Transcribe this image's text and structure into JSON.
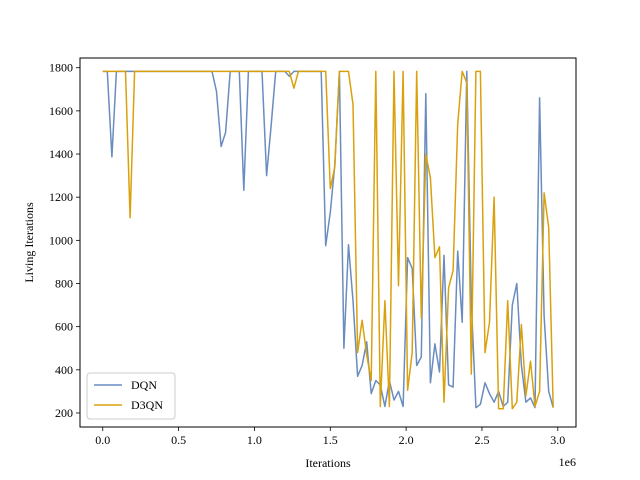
{
  "chart_data": {
    "type": "line",
    "title": "",
    "xlabel": "Iterations",
    "ylabel": "Living Iterations",
    "x_scale_label": "1e6",
    "xlim": [
      -0.15,
      3.12
    ],
    "ylim": [
      135,
      1845
    ],
    "xticks": [
      0.0,
      0.5,
      1.0,
      1.5,
      2.0,
      2.5,
      3.0
    ],
    "xtick_labels": [
      "0.0",
      "0.5",
      "1.0",
      "1.5",
      "2.0",
      "2.5",
      "3.0"
    ],
    "yticks": [
      200,
      400,
      600,
      800,
      1000,
      1200,
      1400,
      1600,
      1800
    ],
    "ytick_labels": [
      "200",
      "400",
      "600",
      "800",
      "1000",
      "1200",
      "1400",
      "1600",
      "1800"
    ],
    "grid": false,
    "legend_position": "lower-left",
    "series": [
      {
        "name": "DQN",
        "color": "#6a8cbf",
        "points": [
          [
            0.0,
            1783
          ],
          [
            0.03,
            1783
          ],
          [
            0.06,
            1387
          ],
          [
            0.09,
            1783
          ],
          [
            0.12,
            1783
          ],
          [
            0.15,
            1783
          ],
          [
            0.3,
            1783
          ],
          [
            0.5,
            1783
          ],
          [
            0.7,
            1783
          ],
          [
            0.72,
            1783
          ],
          [
            0.75,
            1690
          ],
          [
            0.78,
            1435
          ],
          [
            0.81,
            1500
          ],
          [
            0.84,
            1783
          ],
          [
            0.87,
            1783
          ],
          [
            0.9,
            1783
          ],
          [
            0.93,
            1232
          ],
          [
            0.96,
            1783
          ],
          [
            0.99,
            1783
          ],
          [
            1.02,
            1783
          ],
          [
            1.05,
            1783
          ],
          [
            1.08,
            1300
          ],
          [
            1.11,
            1530
          ],
          [
            1.14,
            1783
          ],
          [
            1.17,
            1783
          ],
          [
            1.2,
            1783
          ],
          [
            1.23,
            1760
          ],
          [
            1.26,
            1783
          ],
          [
            1.29,
            1783
          ],
          [
            1.32,
            1783
          ],
          [
            1.35,
            1783
          ],
          [
            1.38,
            1783
          ],
          [
            1.41,
            1783
          ],
          [
            1.44,
            1783
          ],
          [
            1.47,
            975
          ],
          [
            1.5,
            1130
          ],
          [
            1.53,
            1350
          ],
          [
            1.56,
            1783
          ],
          [
            1.59,
            500
          ],
          [
            1.62,
            980
          ],
          [
            1.65,
            720
          ],
          [
            1.68,
            370
          ],
          [
            1.71,
            420
          ],
          [
            1.74,
            530
          ],
          [
            1.77,
            290
          ],
          [
            1.8,
            350
          ],
          [
            1.83,
            330
          ],
          [
            1.86,
            230
          ],
          [
            1.89,
            350
          ],
          [
            1.92,
            260
          ],
          [
            1.95,
            300
          ],
          [
            1.98,
            230
          ],
          [
            2.01,
            920
          ],
          [
            2.04,
            870
          ],
          [
            2.07,
            420
          ],
          [
            2.1,
            460
          ],
          [
            2.13,
            1680
          ],
          [
            2.16,
            340
          ],
          [
            2.19,
            520
          ],
          [
            2.22,
            390
          ],
          [
            2.25,
            930
          ],
          [
            2.28,
            330
          ],
          [
            2.31,
            320
          ],
          [
            2.34,
            950
          ],
          [
            2.37,
            620
          ],
          [
            2.4,
            1783
          ],
          [
            2.43,
            720
          ],
          [
            2.46,
            225
          ],
          [
            2.49,
            240
          ],
          [
            2.52,
            340
          ],
          [
            2.55,
            290
          ],
          [
            2.58,
            250
          ],
          [
            2.61,
            300
          ],
          [
            2.64,
            230
          ],
          [
            2.67,
            250
          ],
          [
            2.7,
            700
          ],
          [
            2.73,
            800
          ],
          [
            2.76,
            420
          ],
          [
            2.79,
            250
          ],
          [
            2.82,
            270
          ],
          [
            2.85,
            225
          ],
          [
            2.88,
            1660
          ],
          [
            2.91,
            650
          ],
          [
            2.94,
            300
          ],
          [
            2.97,
            225
          ]
        ]
      },
      {
        "name": "D3QN",
        "color": "#d9a10d",
        "points": [
          [
            0.0,
            1783
          ],
          [
            0.05,
            1783
          ],
          [
            0.1,
            1783
          ],
          [
            0.15,
            1783
          ],
          [
            0.18,
            1105
          ],
          [
            0.21,
            1783
          ],
          [
            0.3,
            1783
          ],
          [
            0.5,
            1783
          ],
          [
            0.7,
            1783
          ],
          [
            0.9,
            1783
          ],
          [
            1.1,
            1783
          ],
          [
            1.2,
            1783
          ],
          [
            1.23,
            1783
          ],
          [
            1.26,
            1705
          ],
          [
            1.29,
            1783
          ],
          [
            1.32,
            1783
          ],
          [
            1.4,
            1783
          ],
          [
            1.47,
            1783
          ],
          [
            1.5,
            1240
          ],
          [
            1.53,
            1340
          ],
          [
            1.56,
            1783
          ],
          [
            1.59,
            1783
          ],
          [
            1.62,
            1783
          ],
          [
            1.65,
            1630
          ],
          [
            1.68,
            480
          ],
          [
            1.71,
            630
          ],
          [
            1.74,
            470
          ],
          [
            1.77,
            350
          ],
          [
            1.8,
            1783
          ],
          [
            1.83,
            230
          ],
          [
            1.86,
            720
          ],
          [
            1.89,
            230
          ],
          [
            1.92,
            1783
          ],
          [
            1.95,
            790
          ],
          [
            1.98,
            1783
          ],
          [
            2.01,
            305
          ],
          [
            2.04,
            480
          ],
          [
            2.07,
            1783
          ],
          [
            2.1,
            640
          ],
          [
            2.13,
            1400
          ],
          [
            2.16,
            1290
          ],
          [
            2.19,
            920
          ],
          [
            2.22,
            970
          ],
          [
            2.25,
            250
          ],
          [
            2.28,
            780
          ],
          [
            2.31,
            860
          ],
          [
            2.34,
            1540
          ],
          [
            2.37,
            1783
          ],
          [
            2.4,
            1730
          ],
          [
            2.43,
            380
          ],
          [
            2.46,
            1783
          ],
          [
            2.49,
            1783
          ],
          [
            2.52,
            480
          ],
          [
            2.55,
            620
          ],
          [
            2.58,
            1200
          ],
          [
            2.61,
            220
          ],
          [
            2.64,
            220
          ],
          [
            2.67,
            720
          ],
          [
            2.7,
            220
          ],
          [
            2.73,
            250
          ],
          [
            2.76,
            610
          ],
          [
            2.79,
            280
          ],
          [
            2.82,
            440
          ],
          [
            2.85,
            230
          ],
          [
            2.88,
            300
          ],
          [
            2.91,
            1220
          ],
          [
            2.94,
            1060
          ],
          [
            2.97,
            225
          ]
        ]
      }
    ]
  }
}
